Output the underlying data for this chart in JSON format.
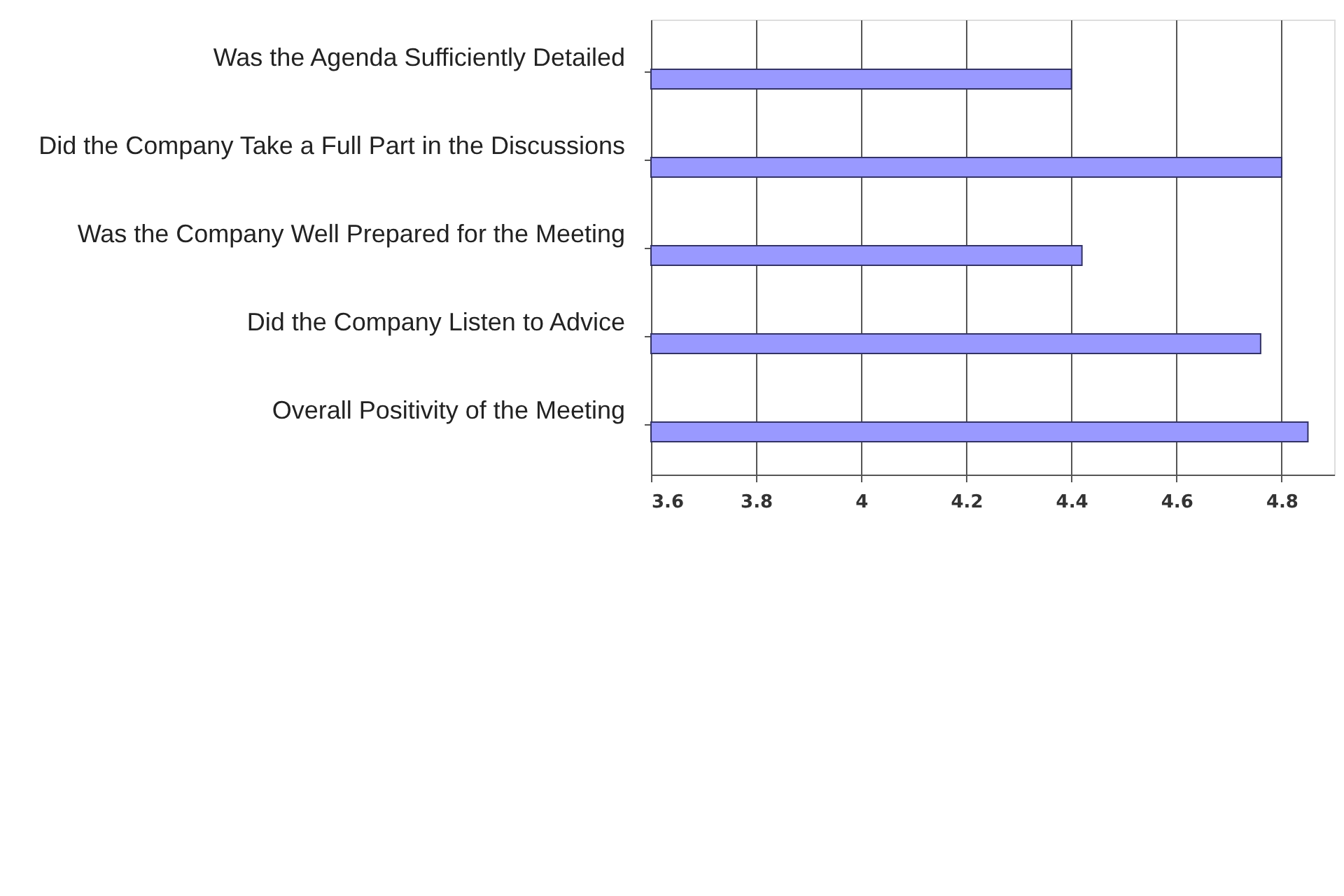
{
  "chart_data": {
    "type": "bar",
    "orientation": "horizontal",
    "categories": [
      "Was the Agenda Sufficiently Detailed",
      "Did the Company Take a Full Part in the Discussions",
      "Was the Company Well Prepared for the Meeting",
      "Did the Company Listen to Advice",
      "Overall Positivity of the Meeting"
    ],
    "values": [
      4.4,
      4.8,
      4.42,
      4.76,
      4.85
    ],
    "color": "#9999ff",
    "xlim": [
      3.6,
      4.9
    ],
    "xticks": [
      3.6,
      3.8,
      4,
      4.2,
      4.4,
      4.6,
      4.8
    ],
    "grid": "x"
  }
}
